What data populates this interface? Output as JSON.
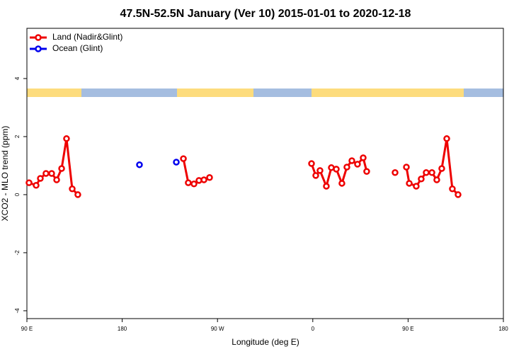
{
  "chart_data": {
    "type": "line",
    "title": "47.5N-52.5N January (Ver 10)   2015-01-01 to 2020-12-18",
    "xlabel": "Longitude (deg E)",
    "ylabel": "XCO2 - MLO trend (ppm)",
    "xlim": [
      90,
      540
    ],
    "ylim": [
      -4.27,
      5.73
    ],
    "xticks": [
      {
        "value": 90,
        "label": "90 E"
      },
      180,
      {
        "value": 270,
        "label": "90 W"
      },
      {
        "value": 360,
        "label": "0"
      },
      {
        "value": 450,
        "label": "90 E"
      },
      {
        "value": 540,
        "label": "180"
      }
    ],
    "yticks": [
      -4,
      -2,
      0,
      2,
      4
    ],
    "legend": "top-left",
    "series": [
      {
        "name": "Land (Nadir&Glint)",
        "color": "#ee0000",
        "x": [
          92,
          98.7,
          102.7,
          108,
          113.4,
          118.1,
          122.8,
          127.4,
          132.8,
          138.1,
          null,
          237.8,
          242.4,
          247.8,
          252.5,
          257.2,
          262.5,
          null,
          358.8,
          362.8,
          366.8,
          372.8,
          377.5,
          382.2,
          387.5,
          392.2,
          396.9,
          402.2,
          407.6,
          410.9,
          null,
          437.7,
          null,
          448.4,
          451.1,
          457.7,
          462.4,
          467.1,
          472.5,
          477.1,
          481.8,
          486.5,
          491.8,
          497.2
        ],
        "values": [
          0.41,
          0.32,
          0.56,
          0.73,
          0.73,
          0.51,
          0.9,
          1.93,
          0.2,
          0,
          null,
          1.24,
          0.41,
          0.37,
          0.49,
          0.51,
          0.59,
          null,
          1.07,
          0.66,
          0.83,
          0.29,
          0.93,
          0.88,
          0.39,
          0.95,
          1.17,
          1.05,
          1.27,
          0.8,
          null,
          0.76,
          null,
          0.95,
          0.39,
          0.29,
          0.54,
          0.76,
          0.76,
          0.51,
          0.9,
          1.93,
          0.2,
          0
        ]
      },
      {
        "name": "Ocean (Glint)",
        "color": "#0000ee",
        "x": [
          196.3,
          null,
          231.1
        ],
        "values": [
          1.03,
          null,
          1.12
        ]
      }
    ]
  }
}
